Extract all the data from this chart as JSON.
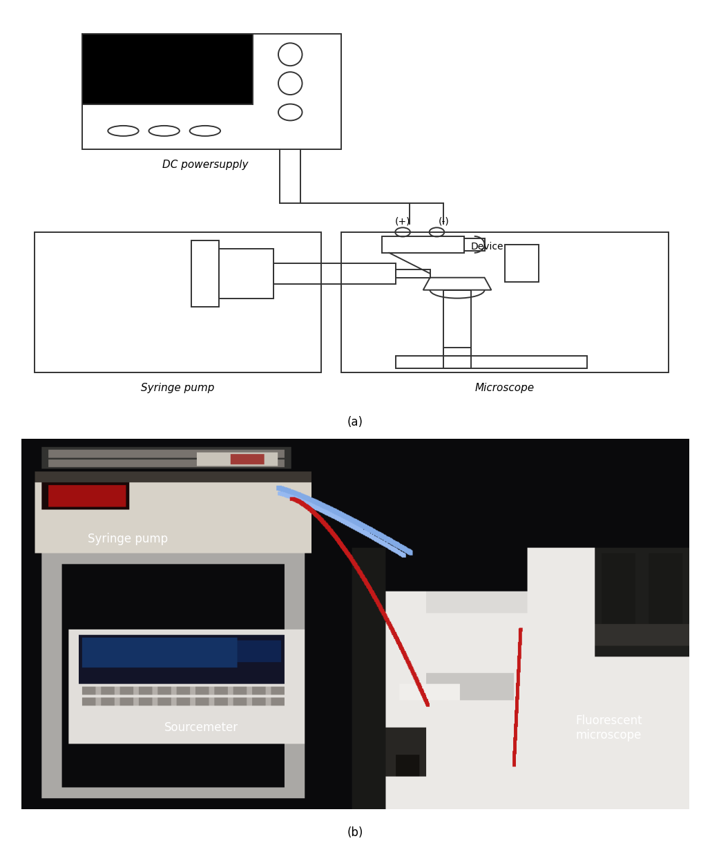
{
  "fig_width": 10.28,
  "fig_height": 12.46,
  "background_color": "#ffffff",
  "panel_a_label": "(a)",
  "panel_b_label": "(b)",
  "label_fontsize": 12,
  "dc_label": "DC powersupply",
  "syringe_label": "Syringe pump",
  "microscope_label": "Microscope",
  "device_label": "Device",
  "plus_label": "(+)",
  "minus_label": "(-)",
  "photo_syringe_label": "Syringe pump",
  "photo_sourcemeter_label": "Sourcemeter",
  "photo_fluorescent_label": "Fluorescent\nmicroscope",
  "line_color": "#333333",
  "line_width": 1.4
}
